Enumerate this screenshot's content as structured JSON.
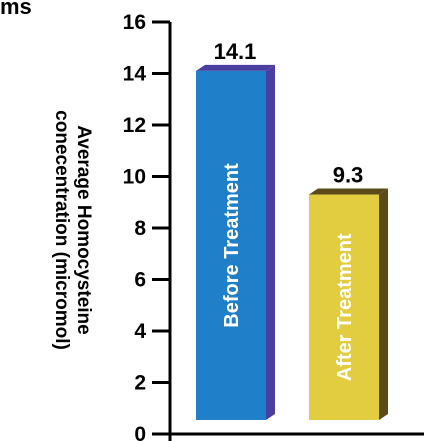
{
  "title_fragment": "ms",
  "colors": {
    "before_front": "#1f7fc9",
    "before_side": "#4a3fa0",
    "after_front": "#e2cc3f",
    "after_side": "#5a4a1a",
    "axis": "#000000"
  },
  "chart_data": {
    "type": "bar",
    "categories": [
      "Before Treatment",
      "After Treatment"
    ],
    "values": [
      14.1,
      9.3
    ],
    "value_labels": [
      "14.1",
      "9.3"
    ],
    "ylabel_line1": "Average Homocysteine",
    "ylabel_line2": "conecentration (micromol)",
    "ylim": [
      0,
      16
    ],
    "yticks": [
      0,
      2,
      4,
      6,
      8,
      10,
      12,
      14,
      16
    ],
    "ytick_labels": [
      "0",
      "2",
      "4",
      "6",
      "8",
      "10",
      "12",
      "14",
      "16"
    ],
    "grid": false,
    "legend": "none"
  }
}
